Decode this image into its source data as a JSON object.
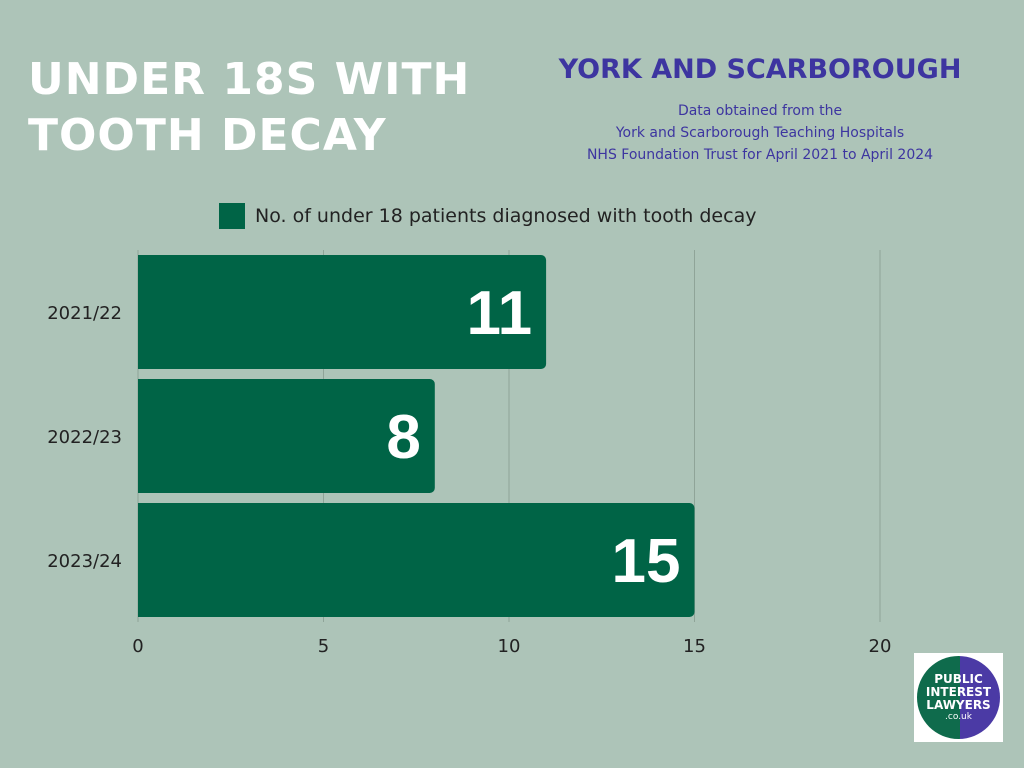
{
  "header": {
    "title_line1": "UNDER 18S WITH",
    "title_line2": "TOOTH DECAY",
    "region": "YORK AND SCARBOROUGH",
    "source_line1": "Data obtained from the",
    "source_line2": "York and Scarborough Teaching Hospitals",
    "source_line3": "NHS Foundation Trust for April 2021 to April 2024"
  },
  "logo": {
    "line1": "PUBLIC",
    "line2": "INTEREST",
    "line3": "LAWYERS",
    "line4": ".co.uk",
    "colors": {
      "left": "#0f6b4c",
      "right": "#4b3aa5"
    }
  },
  "chart_data": {
    "type": "bar",
    "orientation": "horizontal",
    "categories": [
      "2021/22",
      "2022/23",
      "2023/24"
    ],
    "series": [
      {
        "name": "No. of under 18 patients diagnosed with tooth decay",
        "values": [
          11,
          8,
          15
        ]
      }
    ],
    "xlim": [
      0,
      20
    ],
    "xticks": [
      0,
      5,
      10,
      15,
      20
    ],
    "grid": true,
    "legend_position": "top",
    "data_labels": true,
    "colors": {
      "bar": "#006446",
      "background": "#adc4b8",
      "data_label": "#ffffff"
    }
  }
}
